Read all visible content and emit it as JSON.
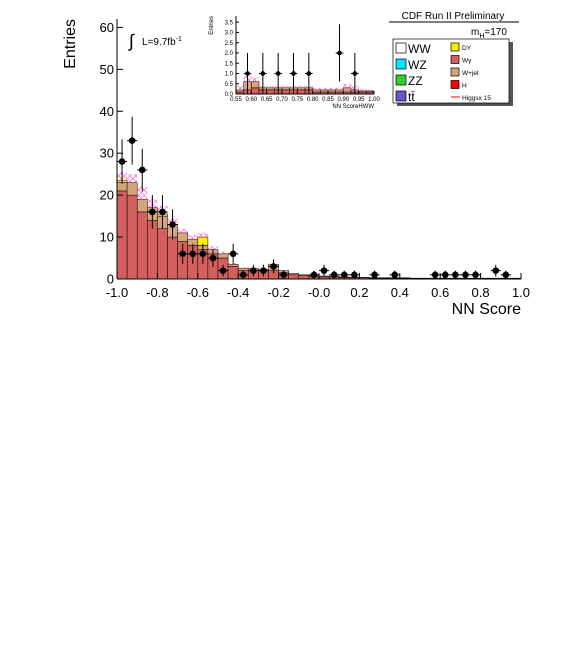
{
  "header": {
    "experiment_label": "CDF Run II Preliminary",
    "luminosity_label": "L=9.7fb",
    "luminosity_exponent": "-1",
    "mass_label_prefix": "m",
    "mass_label_sub": "H",
    "mass_label_value": "=170"
  },
  "chart_data": [
    {
      "type": "bar",
      "title": "",
      "xlabel": "NN Score",
      "ylabel": "Entries",
      "xlim": [
        -1.0,
        1.0
      ],
      "ylim": [
        0,
        62
      ],
      "xticks": [
        "-1.0",
        "-0.8",
        "-0.6",
        "-0.4",
        "-0.2",
        "-0.0",
        "0.2",
        "0.4",
        "0.6",
        "0.8",
        "1.0"
      ],
      "yticks": [
        "0",
        "10",
        "20",
        "30",
        "40",
        "50",
        "60"
      ],
      "bin_edges_start": -1.0,
      "bin_width": 0.05,
      "series": [
        {
          "name": "Wγ",
          "color": "#d45f5f",
          "values": [
            21,
            20,
            16,
            14,
            12,
            10,
            9,
            8,
            7,
            6,
            5,
            3,
            2,
            2,
            2,
            2,
            1.5,
            1,
            0.8,
            0.6,
            0.5,
            0.5,
            0.4,
            0.3,
            0.3,
            0.2,
            0.2,
            0.2,
            0.2,
            0.1,
            0.1,
            0.1,
            0.1,
            0.1,
            0.1,
            0.1,
            0.1,
            0.1,
            0.1,
            0.1
          ]
        },
        {
          "name": "W+jet",
          "color": "#d4a57a",
          "values": [
            2,
            3,
            3,
            3,
            3,
            3,
            2,
            1.5,
            1,
            1,
            1,
            0.5,
            0.5,
            0.5,
            0.3,
            1.5,
            0.5,
            0.3,
            0.2,
            0.2,
            0.2,
            0.2,
            0.1,
            0.1,
            0.1,
            0.1,
            0.1,
            0.1,
            0.1,
            0.1,
            0.1,
            0.1,
            0.1,
            0.1,
            0.1,
            0.1,
            0.1,
            0.1,
            0.1,
            0.1
          ]
        },
        {
          "name": "DY",
          "color": "#ffee00",
          "values": [
            0.5,
            0,
            0,
            0,
            0.5,
            0,
            0,
            0,
            2,
            0,
            0,
            0,
            0,
            0,
            0,
            0,
            0,
            0,
            0,
            0,
            0,
            0,
            0,
            0,
            0,
            0,
            0,
            0,
            0,
            0,
            0,
            0,
            0,
            0,
            0,
            0,
            0,
            0,
            0,
            0
          ]
        },
        {
          "name": "Higgsx 15",
          "color": "#ff44cc",
          "values": [
            2,
            2,
            3,
            2,
            2,
            1.5,
            1,
            1,
            1,
            0.8,
            0.5,
            0.3,
            0.3,
            0.2,
            0.2,
            0.2,
            0.1,
            0.1,
            0.1,
            0.1,
            0.1,
            0.1,
            0.1,
            0.1,
            0.1,
            0.1,
            0.1,
            0.1,
            0.1,
            0.1,
            0.1,
            0.1,
            0.1,
            0.1,
            0.1,
            0.1,
            0.1,
            0.1,
            0.1,
            0.1
          ]
        }
      ],
      "data_points": [
        {
          "x": -0.975,
          "y": 28,
          "err": 5.3
        },
        {
          "x": -0.925,
          "y": 33,
          "err": 5.7
        },
        {
          "x": -0.875,
          "y": 26,
          "err": 5.1
        },
        {
          "x": -0.825,
          "y": 16,
          "err": 4.0
        },
        {
          "x": -0.775,
          "y": 16,
          "err": 4.0
        },
        {
          "x": -0.725,
          "y": 13,
          "err": 3.6
        },
        {
          "x": -0.675,
          "y": 6,
          "err": 2.4
        },
        {
          "x": -0.625,
          "y": 6,
          "err": 2.4
        },
        {
          "x": -0.575,
          "y": 6,
          "err": 2.4
        },
        {
          "x": -0.525,
          "y": 5,
          "err": 2.2
        },
        {
          "x": -0.475,
          "y": 2,
          "err": 1.4
        },
        {
          "x": -0.425,
          "y": 6,
          "err": 2.4
        },
        {
          "x": -0.375,
          "y": 1,
          "err": 1.0
        },
        {
          "x": -0.325,
          "y": 2,
          "err": 1.4
        },
        {
          "x": -0.275,
          "y": 2,
          "err": 1.4
        },
        {
          "x": -0.225,
          "y": 3,
          "err": 1.7
        },
        {
          "x": -0.175,
          "y": 1,
          "err": 1.0
        },
        {
          "x": -0.025,
          "y": 1,
          "err": 1.0
        },
        {
          "x": 0.025,
          "y": 2,
          "err": 1.4
        },
        {
          "x": 0.075,
          "y": 1,
          "err": 1.0
        },
        {
          "x": 0.125,
          "y": 1,
          "err": 1.0
        },
        {
          "x": 0.175,
          "y": 1,
          "err": 1.0
        },
        {
          "x": 0.275,
          "y": 1,
          "err": 1.0
        },
        {
          "x": 0.375,
          "y": 1,
          "err": 1.0
        },
        {
          "x": 0.575,
          "y": 1,
          "err": 1.0
        },
        {
          "x": 0.625,
          "y": 1,
          "err": 1.0
        },
        {
          "x": 0.675,
          "y": 1,
          "err": 1.0
        },
        {
          "x": 0.725,
          "y": 1,
          "err": 1.0
        },
        {
          "x": 0.775,
          "y": 1,
          "err": 1.0
        },
        {
          "x": 0.875,
          "y": 2,
          "err": 1.4
        },
        {
          "x": 0.925,
          "y": 1,
          "err": 1.0
        }
      ]
    },
    {
      "type": "bar",
      "title": "",
      "xlabel": "NN ScoreHWW",
      "ylabel": "Entries",
      "xlim": [
        0.55,
        1.0
      ],
      "ylim": [
        0,
        3.8
      ],
      "xticks": [
        "0.55",
        "0.60",
        "0.65",
        "0.70",
        "0.75",
        "0.80",
        "0.85",
        "0.90",
        "0.95",
        "1.00"
      ],
      "yticks": [
        "0.0",
        "0.5",
        "1.0",
        "1.5",
        "2.0",
        "2.5",
        "3.0",
        "3.5"
      ],
      "bin_edges_start": 0.55,
      "bin_width": 0.025,
      "series": [
        {
          "name": "Wγ",
          "color": "#d45f5f",
          "values": [
            0.1,
            0.2,
            0.3,
            0.2,
            0.2,
            0.2,
            0.2,
            0.2,
            0.2,
            0.2,
            0.1,
            0.1,
            0.1,
            0.1,
            0.1,
            0.1,
            0.1,
            0.1
          ]
        },
        {
          "name": "W+jet",
          "color": "#d4a57a",
          "values": [
            0.1,
            0.4,
            0.3,
            0.1,
            0.1,
            0.1,
            0.1,
            0.1,
            0.1,
            0.1,
            0.1,
            0.1,
            0.1,
            0.1,
            0.2,
            0.1,
            0.05,
            0.05
          ]
        },
        {
          "name": "Higgsx 15",
          "color": "#ff44cc",
          "values": [
            0.2,
            0.3,
            0.2,
            0.1,
            0.1,
            0.1,
            0.1,
            0.1,
            0.1,
            0.1,
            0.1,
            0.1,
            0.1,
            0.1,
            0.2,
            0.2,
            0.1,
            0.05
          ]
        }
      ],
      "data_points": [
        {
          "x": 0.5875,
          "y": 1,
          "err": 1.0
        },
        {
          "x": 0.6375,
          "y": 1,
          "err": 1.0
        },
        {
          "x": 0.6875,
          "y": 1,
          "err": 1.0
        },
        {
          "x": 0.7375,
          "y": 1,
          "err": 1.0
        },
        {
          "x": 0.7875,
          "y": 1,
          "err": 1.0
        },
        {
          "x": 0.8875,
          "y": 2,
          "err": 1.4
        },
        {
          "x": 0.9375,
          "y": 1,
          "err": 1.0
        }
      ]
    }
  ],
  "legend": {
    "left": [
      {
        "label": "WW",
        "color": "#ffffff"
      },
      {
        "label": "WZ",
        "color": "#00e5ff"
      },
      {
        "label": "ZZ",
        "color": "#33cc33"
      },
      {
        "label": "tt̄",
        "color": "#6655cc"
      }
    ],
    "right": [
      {
        "label": "DY",
        "color": "#ffee00"
      },
      {
        "label": "Wγ",
        "color": "#d45f5f"
      },
      {
        "label": "W+jet",
        "color": "#d4a57a"
      },
      {
        "label": "H",
        "color": "#ff0000"
      },
      {
        "label": "Higgsx 15",
        "color": "#ff0000",
        "line": true
      }
    ]
  }
}
